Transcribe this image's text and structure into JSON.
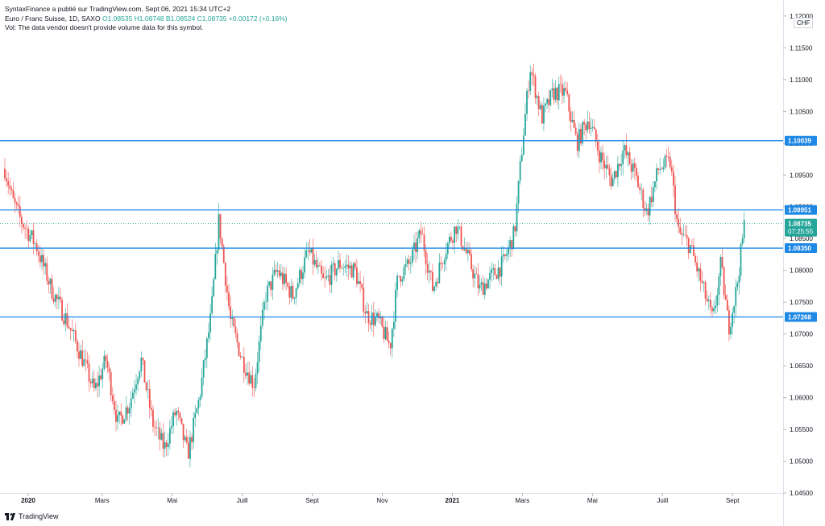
{
  "header": {
    "publisher_line": "SyntaxFinance a  publié sur TradingView.com, Sept 06, 2021 15:34 UTC+2",
    "symbol": "Euro / Franc Suisse, 1D, SAXO",
    "ohlc": "O1.08535  H1.08748  B1.08524  C1.08735  +0.00172 (+0.16%)",
    "volume_note": "Vol: The data vendor doesn't provide volume data for this symbol."
  },
  "currency": "CHF",
  "footer": {
    "brand": "TradingView"
  },
  "countdown": "07:25:55",
  "colors": {
    "up": "#26a69a",
    "down": "#ef5350",
    "line": "#2962ff",
    "level_line": "#1e88e5"
  },
  "chart_data": {
    "type": "candlestick",
    "ylim": [
      1.045,
      1.121
    ],
    "y_ticks": [
      "1.12000",
      "1.11500",
      "1.11000",
      "1.10500",
      "1.10000",
      "1.09500",
      "1.09000",
      "1.08500",
      "1.08000",
      "1.07500",
      "1.07000",
      "1.06500",
      "1.06000",
      "1.05500",
      "1.05000",
      "1.04500"
    ],
    "y_tick_values": [
      1.12,
      1.115,
      1.11,
      1.105,
      1.1,
      1.095,
      1.09,
      1.085,
      1.08,
      1.075,
      1.07,
      1.065,
      1.06,
      1.055,
      1.05,
      1.045
    ],
    "x_ticks": [
      {
        "label": "2020",
        "bold": true,
        "t": 0.03
      },
      {
        "label": "Mars",
        "bold": false,
        "t": 0.125
      },
      {
        "label": "Mai",
        "bold": false,
        "t": 0.215
      },
      {
        "label": "Juill",
        "bold": false,
        "t": 0.305
      },
      {
        "label": "Sept",
        "bold": false,
        "t": 0.395
      },
      {
        "label": "Nov",
        "bold": false,
        "t": 0.485
      },
      {
        "label": "2021",
        "bold": true,
        "t": 0.575
      },
      {
        "label": "Mars",
        "bold": false,
        "t": 0.665
      },
      {
        "label": "Mai",
        "bold": false,
        "t": 0.755
      },
      {
        "label": "Juill",
        "bold": false,
        "t": 0.845
      },
      {
        "label": "Sept",
        "bold": false,
        "t": 0.935
      }
    ],
    "levels": [
      {
        "value": 1.10039,
        "label": "1.10039"
      },
      {
        "value": 1.08951,
        "label": "1.08951"
      },
      {
        "value": 1.0835,
        "label": "1.08350"
      },
      {
        "value": 1.07268,
        "label": "1.07268"
      }
    ],
    "last_price": {
      "value": 1.08735,
      "label": "1.08735"
    },
    "path": [
      [
        0,
        1.096
      ],
      [
        0.01,
        1.091
      ],
      [
        0.02,
        1.088
      ],
      [
        0.04,
        1.084
      ],
      [
        0.06,
        1.077
      ],
      [
        0.08,
        1.072
      ],
      [
        0.1,
        1.066
      ],
      [
        0.115,
        1.061
      ],
      [
        0.13,
        1.066
      ],
      [
        0.145,
        1.056
      ],
      [
        0.16,
        1.059
      ],
      [
        0.175,
        1.066
      ],
      [
        0.19,
        1.056
      ],
      [
        0.205,
        1.052
      ],
      [
        0.22,
        1.058
      ],
      [
        0.235,
        1.051
      ],
      [
        0.25,
        1.06
      ],
      [
        0.265,
        1.073
      ],
      [
        0.275,
        1.088
      ],
      [
        0.29,
        1.072
      ],
      [
        0.305,
        1.066
      ],
      [
        0.32,
        1.062
      ],
      [
        0.335,
        1.076
      ],
      [
        0.35,
        1.08
      ],
      [
        0.37,
        1.076
      ],
      [
        0.39,
        1.083
      ],
      [
        0.41,
        1.078
      ],
      [
        0.43,
        1.081
      ],
      [
        0.45,
        1.08
      ],
      [
        0.465,
        1.073
      ],
      [
        0.48,
        1.072
      ],
      [
        0.495,
        1.068
      ],
      [
        0.505,
        1.079
      ],
      [
        0.52,
        1.081
      ],
      [
        0.535,
        1.086
      ],
      [
        0.55,
        1.077
      ],
      [
        0.565,
        1.083
      ],
      [
        0.58,
        1.087
      ],
      [
        0.595,
        1.082
      ],
      [
        0.61,
        1.077
      ],
      [
        0.625,
        1.079
      ],
      [
        0.64,
        1.081
      ],
      [
        0.655,
        1.086
      ],
      [
        0.665,
        1.1
      ],
      [
        0.675,
        1.112
      ],
      [
        0.69,
        1.104
      ],
      [
        0.705,
        1.108
      ],
      [
        0.72,
        1.108
      ],
      [
        0.735,
        1.1
      ],
      [
        0.75,
        1.104
      ],
      [
        0.765,
        1.098
      ],
      [
        0.78,
        1.094
      ],
      [
        0.795,
        1.099
      ],
      [
        0.81,
        1.095
      ],
      [
        0.825,
        1.089
      ],
      [
        0.84,
        1.096
      ],
      [
        0.855,
        1.097
      ],
      [
        0.865,
        1.086
      ],
      [
        0.88,
        1.084
      ],
      [
        0.895,
        1.078
      ],
      [
        0.91,
        1.072
      ],
      [
        0.92,
        1.081
      ],
      [
        0.93,
        1.071
      ],
      [
        0.94,
        1.077
      ],
      [
        0.95,
        1.087
      ]
    ]
  }
}
